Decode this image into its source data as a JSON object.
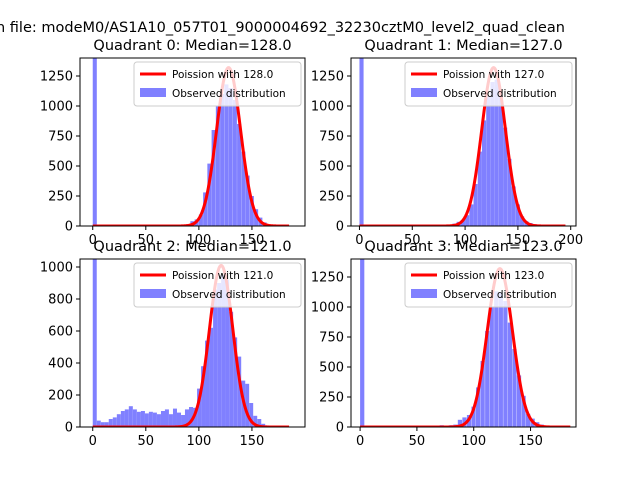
{
  "suptitle": "n file: modeM0/AS1A10_057T01_9000004692_32230cztM0_level2_quad_clean",
  "colors": {
    "hist": "#8080ff",
    "fit": "#ff0000",
    "axis": "#000000"
  },
  "chart_data": [
    {
      "type": "histogram+line",
      "title": "Quadrant 0: Median=128.0",
      "xlim": [
        -12,
        200
      ],
      "ylim": [
        0,
        1400
      ],
      "xticks": [
        0,
        50,
        100,
        150
      ],
      "yticks": [
        0,
        250,
        500,
        750,
        1000,
        1250
      ],
      "legend": {
        "position": "upper-right",
        "line_label": "Poission with 128.0",
        "hist_label": "Observed distribution"
      },
      "hist": {
        "bin_width": 3.84,
        "bins": [
          [
            0,
            1400
          ],
          [
            88,
            15
          ],
          [
            92,
            40
          ],
          [
            96,
            55
          ],
          [
            100,
            95
          ],
          [
            104,
            280
          ],
          [
            108,
            520
          ],
          [
            112,
            800
          ],
          [
            116,
            1000
          ],
          [
            120,
            1100
          ],
          [
            124,
            1180
          ],
          [
            128,
            1150
          ],
          [
            132,
            1050
          ],
          [
            136,
            850
          ],
          [
            140,
            620
          ],
          [
            144,
            420
          ],
          [
            148,
            250
          ],
          [
            152,
            140
          ],
          [
            156,
            70
          ],
          [
            160,
            30
          ],
          [
            164,
            12
          ]
        ]
      },
      "poisson": {
        "mean": 128.0,
        "peak": 1320,
        "range": [
          0,
          185
        ]
      }
    },
    {
      "type": "histogram+line",
      "title": "Quadrant 1: Median=127.0",
      "xlim": [
        -8,
        205
      ],
      "ylim": [
        0,
        1400
      ],
      "xticks": [
        0,
        50,
        100,
        150,
        200
      ],
      "yticks": [
        0,
        250,
        500,
        750,
        1000,
        1250
      ],
      "legend": {
        "position": "upper-right",
        "line_label": "Poission with 127.0",
        "hist_label": "Observed distribution"
      },
      "hist": {
        "bin_width": 3.9,
        "bins": [
          [
            0,
            1400
          ],
          [
            84,
            10
          ],
          [
            88,
            20
          ],
          [
            92,
            35
          ],
          [
            96,
            50
          ],
          [
            100,
            90
          ],
          [
            104,
            180
          ],
          [
            108,
            350
          ],
          [
            112,
            620
          ],
          [
            116,
            880
          ],
          [
            120,
            1080
          ],
          [
            124,
            1200
          ],
          [
            128,
            1220
          ],
          [
            132,
            1080
          ],
          [
            136,
            820
          ],
          [
            140,
            560
          ],
          [
            144,
            330
          ],
          [
            148,
            180
          ],
          [
            152,
            80
          ],
          [
            156,
            40
          ],
          [
            160,
            25
          ],
          [
            164,
            15
          ]
        ]
      },
      "poisson": {
        "mean": 127.0,
        "peak": 1320,
        "range": [
          0,
          195
        ]
      }
    },
    {
      "type": "histogram+line",
      "title": "Quadrant 2: Median=121.0",
      "xlim": [
        -12,
        200
      ],
      "ylim": [
        0,
        1050
      ],
      "xticks": [
        0,
        50,
        100,
        150
      ],
      "yticks": [
        0,
        200,
        400,
        600,
        800,
        1000
      ],
      "legend": {
        "position": "upper-right",
        "line_label": "Poission with 121.0",
        "hist_label": "Observed distribution"
      },
      "hist": {
        "bin_width": 3.78,
        "bins": [
          [
            0,
            1050
          ],
          [
            3.8,
            40
          ],
          [
            7.6,
            30
          ],
          [
            11.3,
            30
          ],
          [
            15.1,
            50
          ],
          [
            18.9,
            60
          ],
          [
            22.7,
            80
          ],
          [
            26.5,
            100
          ],
          [
            30.2,
            110
          ],
          [
            34,
            130
          ],
          [
            37.8,
            110
          ],
          [
            41.6,
            95
          ],
          [
            45.4,
            100
          ],
          [
            49.1,
            85
          ],
          [
            52.9,
            95
          ],
          [
            56.7,
            90
          ],
          [
            60.5,
            80
          ],
          [
            64.3,
            100
          ],
          [
            68,
            110
          ],
          [
            71.8,
            80
          ],
          [
            75.6,
            115
          ],
          [
            79.4,
            90
          ],
          [
            83.2,
            75
          ],
          [
            86.9,
            110
          ],
          [
            90.7,
            125
          ],
          [
            94.5,
            120
          ],
          [
            98.3,
            240
          ],
          [
            102.1,
            380
          ],
          [
            105.8,
            540
          ],
          [
            109.6,
            620
          ],
          [
            113.4,
            860
          ],
          [
            117.2,
            900
          ],
          [
            121,
            950
          ],
          [
            124.7,
            920
          ],
          [
            128.5,
            720
          ],
          [
            132.3,
            560
          ],
          [
            136.1,
            440
          ],
          [
            139.9,
            290
          ],
          [
            143.6,
            270
          ],
          [
            147.4,
            150
          ],
          [
            151.2,
            70
          ],
          [
            155,
            50
          ],
          [
            158.7,
            20
          ],
          [
            162.5,
            10
          ]
        ]
      },
      "poisson": {
        "mean": 121.0,
        "peak": 1010,
        "range": [
          0,
          185
        ]
      }
    },
    {
      "type": "histogram+line",
      "title": "Quadrant 3: Median=123.0",
      "xlim": [
        -8,
        190
      ],
      "ylim": [
        0,
        1400
      ],
      "xticks": [
        0,
        50,
        100,
        150
      ],
      "yticks": [
        0,
        250,
        500,
        750,
        1000,
        1250
      ],
      "legend": {
        "position": "upper-right",
        "line_label": "Poission with 123.0",
        "hist_label": "Observed distribution"
      },
      "hist": {
        "bin_width": 3.72,
        "bins": [
          [
            0,
            1400
          ],
          [
            70,
            15
          ],
          [
            78,
            15
          ],
          [
            82,
            20
          ],
          [
            86,
            60
          ],
          [
            90,
            80
          ],
          [
            94,
            100
          ],
          [
            98,
            170
          ],
          [
            102,
            330
          ],
          [
            106,
            550
          ],
          [
            110,
            800
          ],
          [
            114,
            1000
          ],
          [
            118,
            1130
          ],
          [
            122,
            1120
          ],
          [
            126,
            1050
          ],
          [
            130,
            870
          ],
          [
            134,
            650
          ],
          [
            138,
            430
          ],
          [
            142,
            260
          ],
          [
            146,
            110
          ],
          [
            150,
            70
          ],
          [
            154,
            40
          ],
          [
            158,
            20
          ],
          [
            162,
            10
          ]
        ]
      },
      "poisson": {
        "mean": 123.0,
        "peak": 1320,
        "range": [
          0,
          185
        ]
      }
    }
  ]
}
